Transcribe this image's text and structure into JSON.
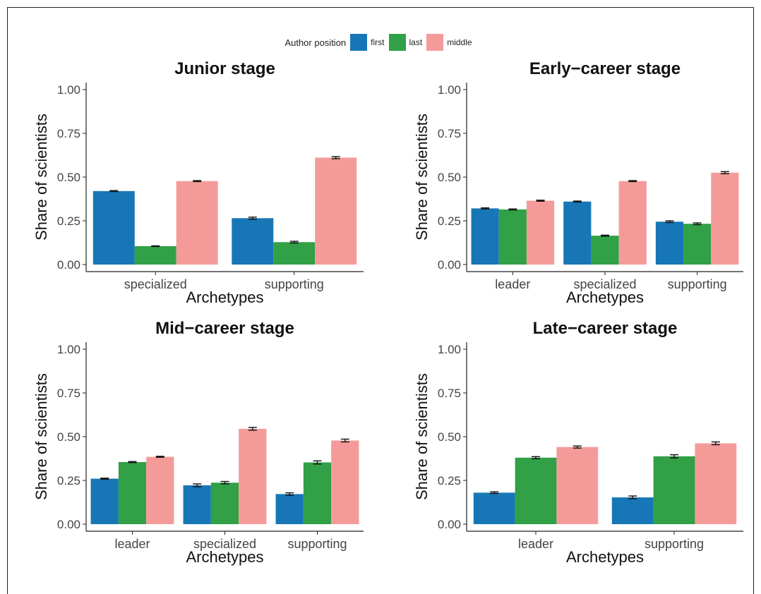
{
  "legend": {
    "title": "Author position",
    "entries": [
      {
        "label": "first",
        "color": "#1777b6"
      },
      {
        "label": "last",
        "color": "#31a046"
      },
      {
        "label": "middle",
        "color": "#f49b99"
      }
    ]
  },
  "chart_data": [
    {
      "type": "bar",
      "title": "Junior stage",
      "xlabel": "Archetypes",
      "ylabel": "Share of scientists",
      "ylim": [
        0,
        1
      ],
      "yticks": [
        "0.00",
        "0.25",
        "0.50",
        "0.75",
        "1.00"
      ],
      "categories": [
        "specialized",
        "supporting"
      ],
      "series": [
        {
          "name": "first",
          "values": [
            0.42,
            0.265
          ],
          "errors": [
            0.003,
            0.006
          ]
        },
        {
          "name": "last",
          "values": [
            0.105,
            0.128
          ],
          "errors": [
            0.002,
            0.005
          ]
        },
        {
          "name": "middle",
          "values": [
            0.477,
            0.611
          ],
          "errors": [
            0.003,
            0.006
          ]
        }
      ]
    },
    {
      "type": "bar",
      "title": "Early−career stage",
      "xlabel": "Archetypes",
      "ylabel": "Share of scientists",
      "ylim": [
        0,
        1
      ],
      "yticks": [
        "0.00",
        "0.25",
        "0.50",
        "0.75",
        "1.00"
      ],
      "categories": [
        "leader",
        "specialized",
        "supporting"
      ],
      "series": [
        {
          "name": "first",
          "values": [
            0.321,
            0.36,
            0.245
          ],
          "errors": [
            0.003,
            0.003,
            0.005
          ]
        },
        {
          "name": "last",
          "values": [
            0.315,
            0.165,
            0.233
          ],
          "errors": [
            0.003,
            0.003,
            0.005
          ]
        },
        {
          "name": "middle",
          "values": [
            0.365,
            0.477,
            0.525
          ],
          "errors": [
            0.003,
            0.003,
            0.006
          ]
        }
      ]
    },
    {
      "type": "bar",
      "title": "Mid−career stage",
      "xlabel": "Archetypes",
      "ylabel": "Share of scientists",
      "ylim": [
        0,
        1
      ],
      "yticks": [
        "0.00",
        "0.25",
        "0.50",
        "0.75",
        "1.00"
      ],
      "categories": [
        "leader",
        "specialized",
        "supporting"
      ],
      "series": [
        {
          "name": "first",
          "values": [
            0.26,
            0.222,
            0.172
          ],
          "errors": [
            0.003,
            0.008,
            0.007
          ]
        },
        {
          "name": "last",
          "values": [
            0.355,
            0.237,
            0.353
          ],
          "errors": [
            0.003,
            0.007,
            0.009
          ]
        },
        {
          "name": "middle",
          "values": [
            0.385,
            0.545,
            0.478
          ],
          "errors": [
            0.003,
            0.008,
            0.008
          ]
        }
      ]
    },
    {
      "type": "bar",
      "title": "Late−career stage",
      "xlabel": "Archetypes",
      "ylabel": "Share of scientists",
      "ylim": [
        0,
        1
      ],
      "yticks": [
        "0.00",
        "0.25",
        "0.50",
        "0.75",
        "1.00"
      ],
      "categories": [
        "leader",
        "supporting"
      ],
      "series": [
        {
          "name": "first",
          "values": [
            0.18,
            0.153
          ],
          "errors": [
            0.005,
            0.008
          ]
        },
        {
          "name": "last",
          "values": [
            0.38,
            0.388
          ],
          "errors": [
            0.006,
            0.009
          ]
        },
        {
          "name": "middle",
          "values": [
            0.441,
            0.462
          ],
          "errors": [
            0.006,
            0.008
          ]
        }
      ]
    }
  ]
}
